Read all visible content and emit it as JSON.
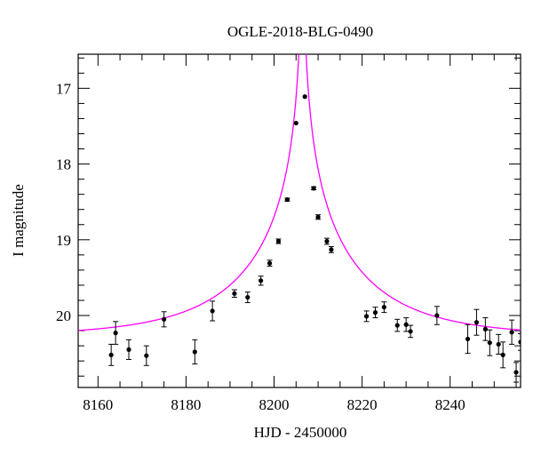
{
  "chart_data": {
    "type": "scatter",
    "title": "OGLE-2018-BLG-0490",
    "xlabel": "HJD - 2450000",
    "ylabel": "I magnitude",
    "xlim": [
      8155.5,
      8256
    ],
    "ylim": [
      20.95,
      16.55
    ],
    "y_inverted": true,
    "x_ticks": [
      8160,
      8180,
      8200,
      8220,
      8240
    ],
    "y_ticks": [
      17,
      18,
      19,
      20
    ],
    "grid": false,
    "model": {
      "t0": 8206.45,
      "tE": 27.05,
      "u0": 0.0104,
      "baseline_mag": 20.273,
      "color": "#ff00ff"
    },
    "points": [
      {
        "x": 8163.0,
        "y": 20.52,
        "err": 0.14
      },
      {
        "x": 8164.0,
        "y": 20.23,
        "err": 0.15
      },
      {
        "x": 8167.0,
        "y": 20.45,
        "err": 0.13
      },
      {
        "x": 8171.0,
        "y": 20.53,
        "err": 0.13
      },
      {
        "x": 8175.0,
        "y": 20.05,
        "err": 0.1
      },
      {
        "x": 8182.0,
        "y": 20.48,
        "err": 0.16
      },
      {
        "x": 8186.0,
        "y": 19.94,
        "err": 0.13
      },
      {
        "x": 8191.0,
        "y": 19.71,
        "err": 0.05
      },
      {
        "x": 8194.0,
        "y": 19.76,
        "err": 0.07
      },
      {
        "x": 8197.0,
        "y": 19.54,
        "err": 0.06
      },
      {
        "x": 8199.0,
        "y": 19.31,
        "err": 0.04
      },
      {
        "x": 8201.0,
        "y": 19.02,
        "err": 0.03
      },
      {
        "x": 8203.0,
        "y": 18.47,
        "err": 0.02
      },
      {
        "x": 8205.0,
        "y": 17.46,
        "err": 0.01
      },
      {
        "x": 8207.0,
        "y": 17.11,
        "err": 0.01
      },
      {
        "x": 8209.0,
        "y": 18.32,
        "err": 0.02
      },
      {
        "x": 8210.0,
        "y": 18.7,
        "err": 0.03
      },
      {
        "x": 8212.0,
        "y": 19.02,
        "err": 0.04
      },
      {
        "x": 8213.0,
        "y": 19.13,
        "err": 0.04
      },
      {
        "x": 8221.0,
        "y": 20.01,
        "err": 0.07
      },
      {
        "x": 8223.0,
        "y": 19.96,
        "err": 0.07
      },
      {
        "x": 8225.0,
        "y": 19.89,
        "err": 0.07
      },
      {
        "x": 8228.0,
        "y": 20.13,
        "err": 0.08
      },
      {
        "x": 8230.0,
        "y": 20.12,
        "err": 0.09
      },
      {
        "x": 8231.0,
        "y": 20.21,
        "err": 0.08
      },
      {
        "x": 8237.0,
        "y": 20.0,
        "err": 0.12
      },
      {
        "x": 8244.0,
        "y": 20.31,
        "err": 0.19
      },
      {
        "x": 8246.0,
        "y": 20.09,
        "err": 0.17
      },
      {
        "x": 8248.0,
        "y": 20.18,
        "err": 0.15
      },
      {
        "x": 8249.0,
        "y": 20.36,
        "err": 0.17
      },
      {
        "x": 8251.0,
        "y": 20.38,
        "err": 0.13
      },
      {
        "x": 8252.0,
        "y": 20.52,
        "err": 0.17
      },
      {
        "x": 8254.0,
        "y": 20.22,
        "err": 0.16
      },
      {
        "x": 8255.0,
        "y": 20.75,
        "err": 0.13
      },
      {
        "x": 8256.0,
        "y": 20.35,
        "err": 0.11
      }
    ]
  }
}
